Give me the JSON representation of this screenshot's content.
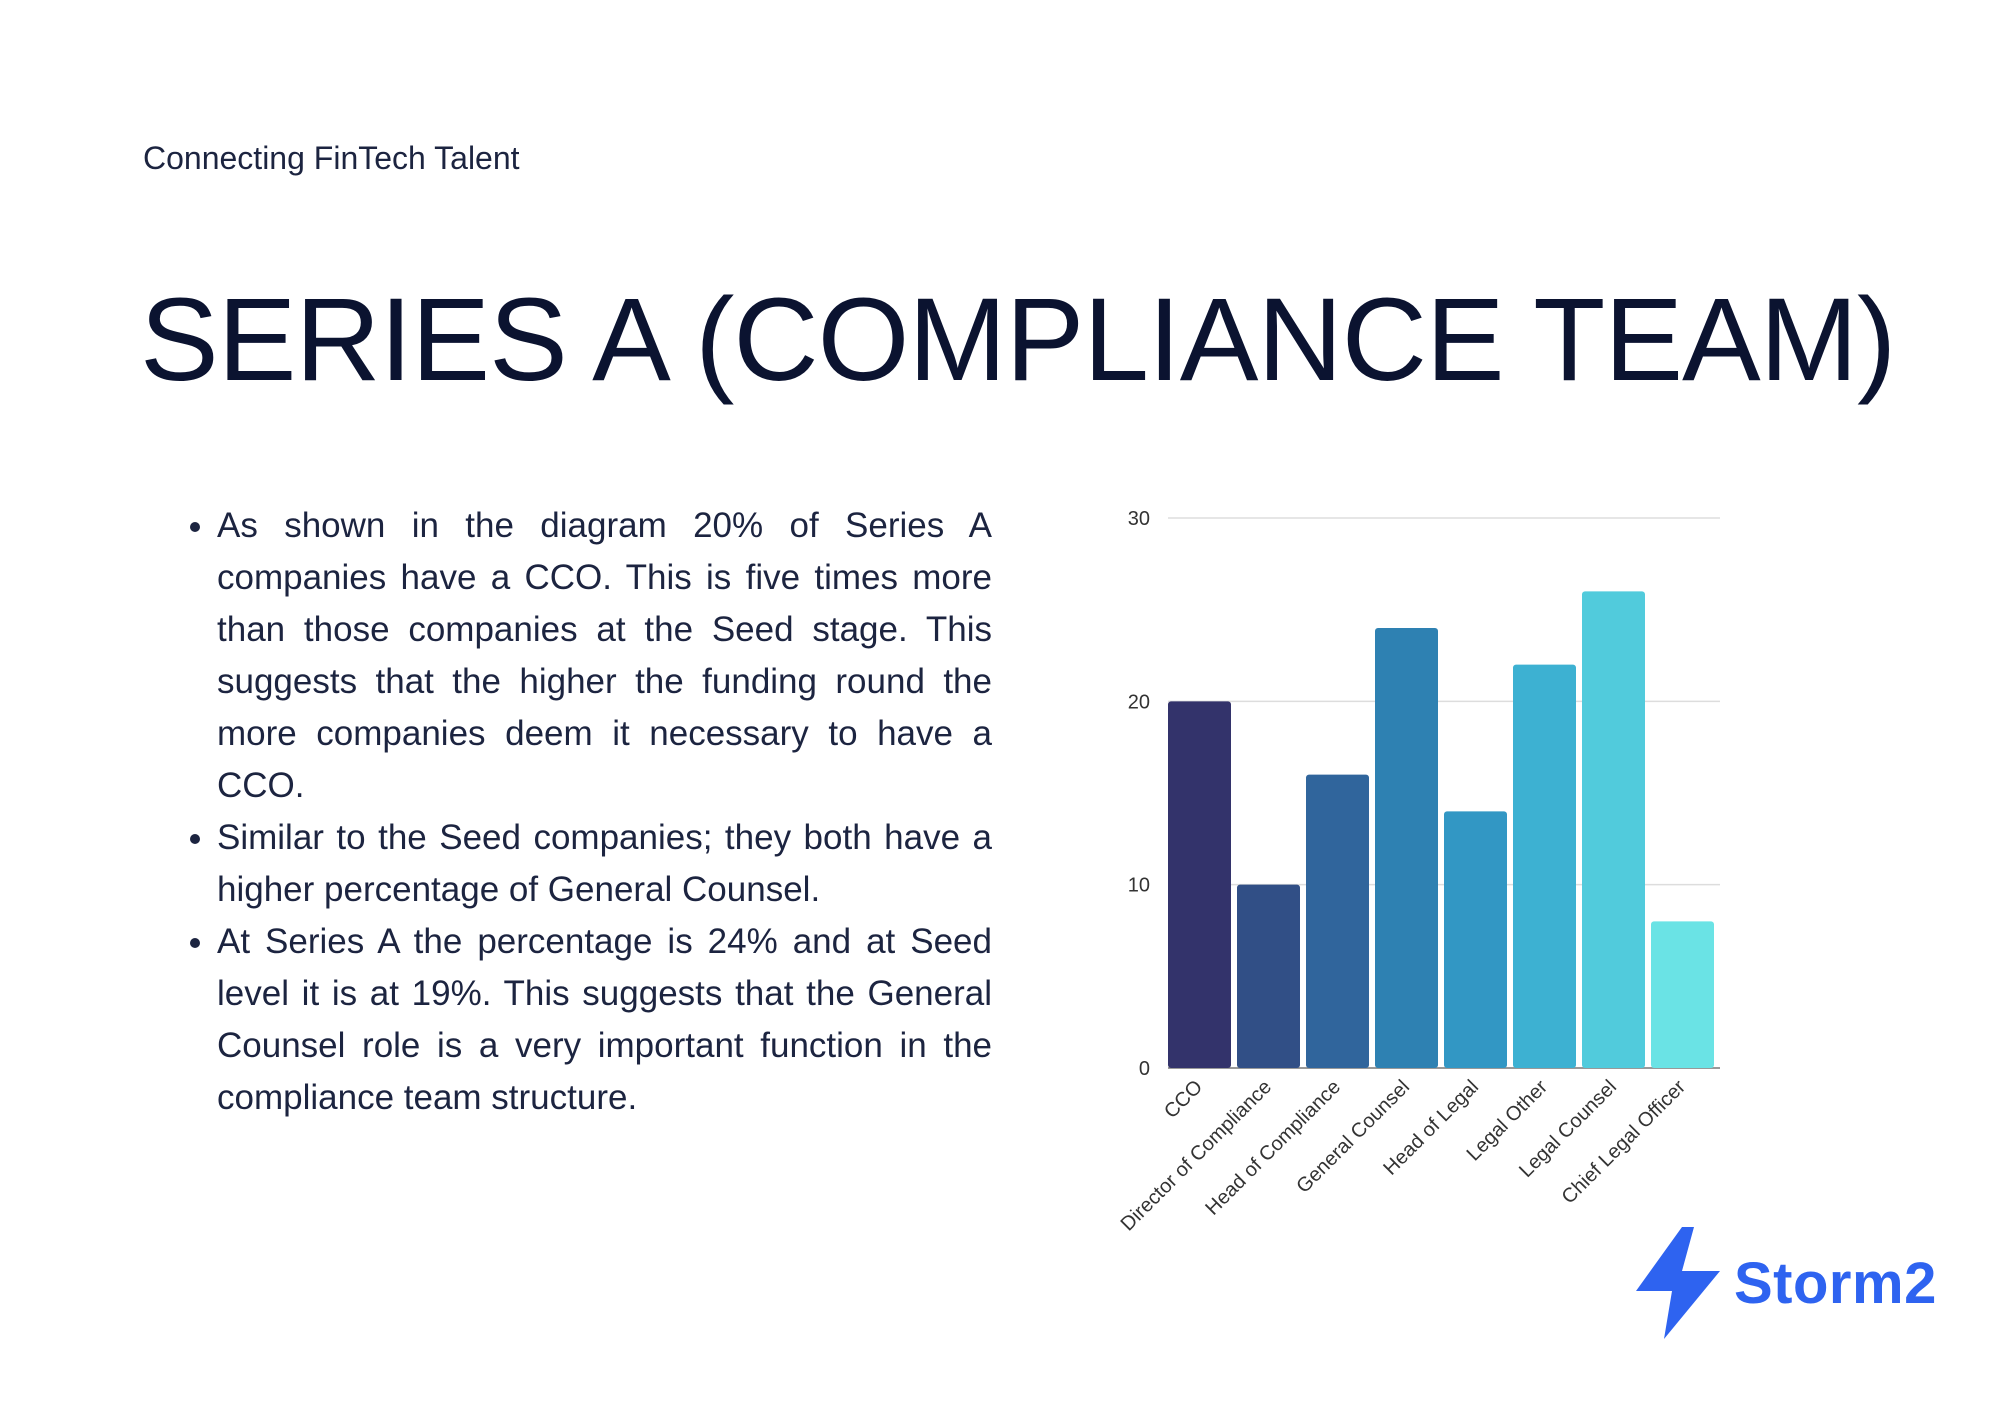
{
  "tagline": "Connecting FinTech Talent",
  "title": "SERIES A (COMPLIANCE TEAM)",
  "bullets": [
    "As  shown in the diagram  20% of Series A companies have a CCO. This is five times more than those companies at the Seed stage.  This suggests that the higher the funding round the more companies deem it necessary to have a CCO.",
    "Similar to the Seed companies; they both have a higher percentage of General Counsel.",
    "At Series A the percentage is 24% and at Seed level it is at 19%. This suggests that the General Counsel role is a very important function in the compliance team structure."
  ],
  "logo": {
    "text": "Storm2",
    "icon": "lightning-bolt-icon",
    "color": "#2e63f0"
  },
  "chart_data": {
    "type": "bar",
    "categories": [
      "CCO",
      "Director of Compliance",
      "Head of Compliance",
      "General Counsel",
      "Head of Legal",
      "Legal Other",
      "Legal Counsel",
      "Chief Legal Officer"
    ],
    "values": [
      20,
      10,
      16,
      24,
      14,
      22,
      26,
      8
    ],
    "colors": [
      "#33336b",
      "#314f86",
      "#30659c",
      "#2e81b2",
      "#3297c4",
      "#3db1d2",
      "#51cbdc",
      "#6ae3e5"
    ],
    "yticks": [
      0,
      10,
      20,
      30
    ],
    "ylim": [
      0,
      30
    ],
    "grid": true,
    "legend": false,
    "title": "",
    "xlabel": "",
    "ylabel": ""
  }
}
